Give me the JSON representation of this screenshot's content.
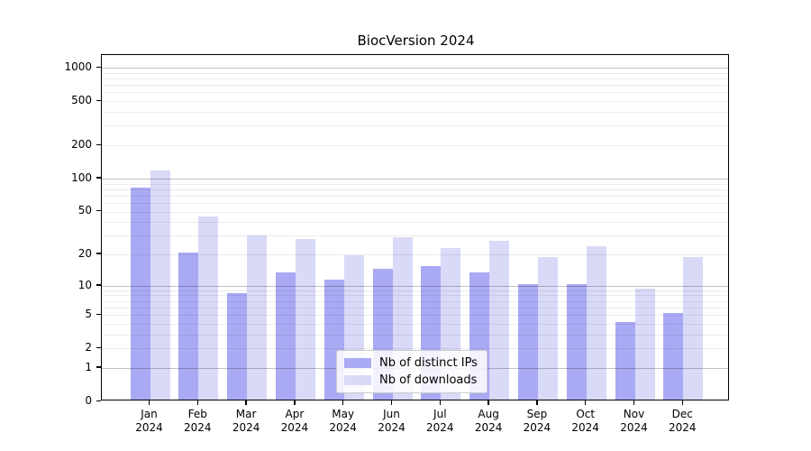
{
  "title": "BiocVersion 2024",
  "colors": {
    "distinct_ips_bar": "#a9a9f4",
    "downloads_bar": "#d9d9f8",
    "spine": "#000000",
    "grid_major": "#c2c2c2",
    "grid_minor": "#ececec"
  },
  "legend": {
    "items": [
      {
        "label": "Nb of distinct IPs",
        "color": "#a9a9f4"
      },
      {
        "label": "Nb of downloads",
        "color": "#d9d9f8"
      }
    ]
  },
  "chart_data": {
    "type": "bar",
    "title": "BiocVersion 2024",
    "categories": [
      "Jan 2024",
      "Feb 2024",
      "Mar 2024",
      "Apr 2024",
      "May 2024",
      "Jun 2024",
      "Jul 2024",
      "Aug 2024",
      "Sep 2024",
      "Oct 2024",
      "Nov 2024",
      "Dec 2024"
    ],
    "x_months": [
      "Jan",
      "Feb",
      "Mar",
      "Apr",
      "May",
      "Jun",
      "Jul",
      "Aug",
      "Sep",
      "Oct",
      "Nov",
      "Dec"
    ],
    "x_year": "2024",
    "series": [
      {
        "name": "Nb of distinct IPs",
        "color": "#a9a9f4",
        "values": [
          80,
          20,
          8,
          13,
          11,
          14,
          15,
          13,
          10,
          10,
          4,
          5
        ]
      },
      {
        "name": "Nb of downloads",
        "color": "#d9d9f8",
        "values": [
          113,
          43,
          29,
          27,
          19,
          28,
          22,
          26,
          18,
          23,
          9,
          18
        ]
      }
    ],
    "xlabel": "",
    "ylabel": "",
    "yscale": "log10(1+x)",
    "yticks": [
      0,
      1,
      2,
      5,
      10,
      20,
      50,
      100,
      200,
      500,
      1000
    ],
    "ylim": [
      0,
      1300
    ],
    "grid": "horizontal major (1,10,100,1000) + minor (2-9 per decade)",
    "legend_position": "lower center"
  }
}
